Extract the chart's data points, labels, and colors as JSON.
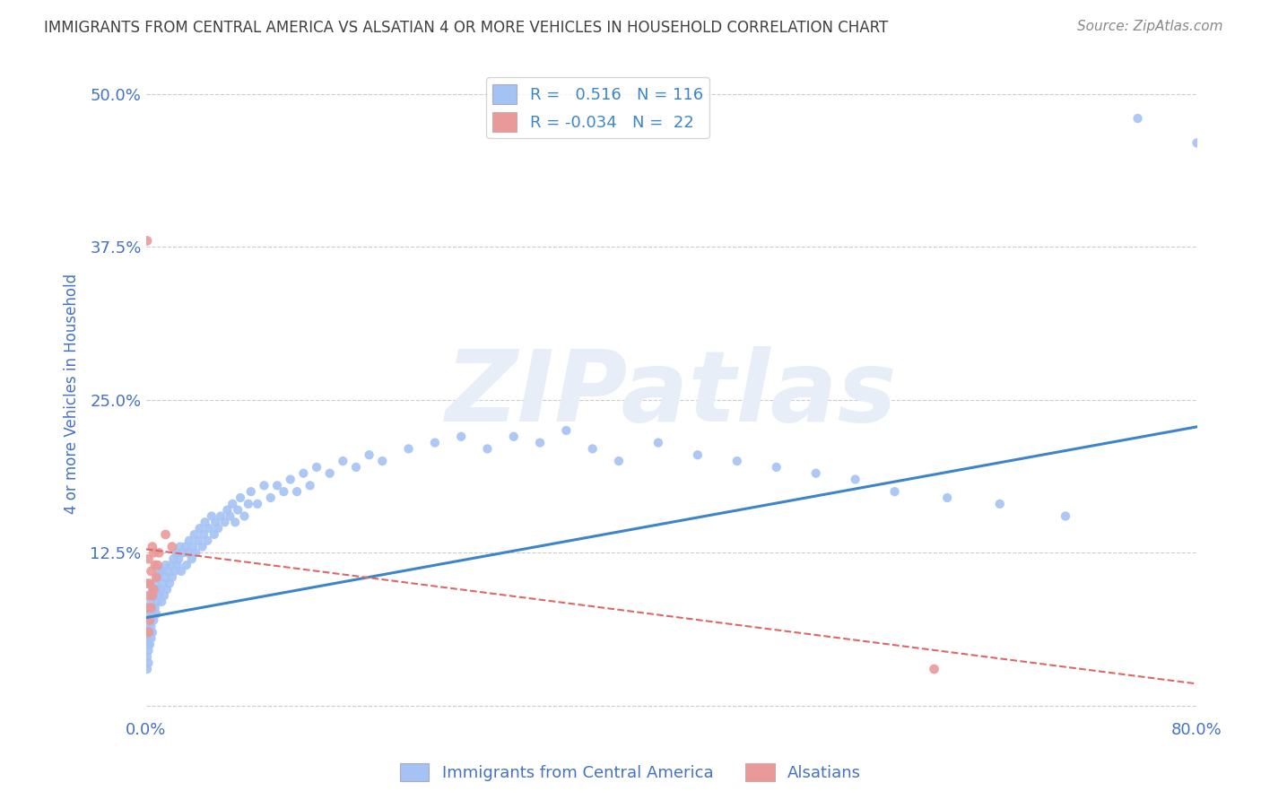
{
  "title": "IMMIGRANTS FROM CENTRAL AMERICA VS ALSATIAN 4 OR MORE VEHICLES IN HOUSEHOLD CORRELATION CHART",
  "source": "Source: ZipAtlas.com",
  "xlabel_blue": "Immigrants from Central America",
  "xlabel_pink": "Alsatians",
  "ylabel": "4 or more Vehicles in Household",
  "blue_R": 0.516,
  "blue_N": 116,
  "pink_R": -0.034,
  "pink_N": 22,
  "xlim": [
    0.0,
    0.8
  ],
  "ylim": [
    -0.01,
    0.52
  ],
  "yticks": [
    0.0,
    0.125,
    0.25,
    0.375,
    0.5
  ],
  "ytick_labels": [
    "",
    "12.5%",
    "25.0%",
    "37.5%",
    "50.0%"
  ],
  "xticks": [
    0.0,
    0.1,
    0.2,
    0.3,
    0.4,
    0.5,
    0.6,
    0.7,
    0.8
  ],
  "xtick_labels": [
    "0.0%",
    "",
    "",
    "",
    "",
    "",
    "",
    "",
    "80.0%"
  ],
  "blue_color": "#a4c2f4",
  "pink_color": "#ea9999",
  "blue_line_color": "#3d85c8",
  "pink_line_color": "#e06666",
  "grid_color": "#cccccc",
  "watermark_color": "#e8eef8",
  "title_color": "#404040",
  "axis_label_color": "#4472c4",
  "tick_color": "#4472c4",
  "blue_line_x0": 0.0,
  "blue_line_y0": 0.072,
  "blue_line_x1": 0.8,
  "blue_line_y1": 0.228,
  "pink_line_x0": 0.0,
  "pink_line_y0": 0.128,
  "pink_line_x1": 0.8,
  "pink_line_y1": 0.018,
  "blue_scatter_x": [
    0.001,
    0.001,
    0.001,
    0.001,
    0.001,
    0.002,
    0.002,
    0.002,
    0.002,
    0.002,
    0.003,
    0.003,
    0.003,
    0.003,
    0.004,
    0.004,
    0.004,
    0.005,
    0.005,
    0.005,
    0.006,
    0.006,
    0.007,
    0.007,
    0.008,
    0.008,
    0.009,
    0.009,
    0.01,
    0.01,
    0.011,
    0.012,
    0.012,
    0.013,
    0.014,
    0.015,
    0.015,
    0.016,
    0.017,
    0.018,
    0.019,
    0.02,
    0.021,
    0.022,
    0.023,
    0.024,
    0.025,
    0.026,
    0.027,
    0.028,
    0.03,
    0.031,
    0.032,
    0.033,
    0.035,
    0.036,
    0.037,
    0.038,
    0.04,
    0.041,
    0.043,
    0.044,
    0.045,
    0.047,
    0.048,
    0.05,
    0.052,
    0.053,
    0.055,
    0.057,
    0.06,
    0.062,
    0.064,
    0.066,
    0.068,
    0.07,
    0.072,
    0.075,
    0.078,
    0.08,
    0.085,
    0.09,
    0.095,
    0.1,
    0.105,
    0.11,
    0.115,
    0.12,
    0.125,
    0.13,
    0.14,
    0.15,
    0.16,
    0.17,
    0.18,
    0.2,
    0.22,
    0.24,
    0.26,
    0.28,
    0.3,
    0.32,
    0.34,
    0.36,
    0.39,
    0.42,
    0.45,
    0.48,
    0.51,
    0.54,
    0.57,
    0.61,
    0.65,
    0.7,
    0.755,
    0.8
  ],
  "blue_scatter_y": [
    0.03,
    0.055,
    0.07,
    0.04,
    0.06,
    0.05,
    0.065,
    0.045,
    0.075,
    0.035,
    0.06,
    0.08,
    0.05,
    0.07,
    0.055,
    0.085,
    0.065,
    0.075,
    0.095,
    0.06,
    0.07,
    0.09,
    0.08,
    0.1,
    0.075,
    0.095,
    0.085,
    0.105,
    0.09,
    0.11,
    0.095,
    0.085,
    0.11,
    0.1,
    0.09,
    0.105,
    0.115,
    0.095,
    0.11,
    0.1,
    0.115,
    0.105,
    0.12,
    0.11,
    0.125,
    0.115,
    0.12,
    0.13,
    0.11,
    0.125,
    0.13,
    0.115,
    0.125,
    0.135,
    0.12,
    0.13,
    0.14,
    0.125,
    0.135,
    0.145,
    0.13,
    0.14,
    0.15,
    0.135,
    0.145,
    0.155,
    0.14,
    0.15,
    0.145,
    0.155,
    0.15,
    0.16,
    0.155,
    0.165,
    0.15,
    0.16,
    0.17,
    0.155,
    0.165,
    0.175,
    0.165,
    0.18,
    0.17,
    0.18,
    0.175,
    0.185,
    0.175,
    0.19,
    0.18,
    0.195,
    0.19,
    0.2,
    0.195,
    0.205,
    0.2,
    0.21,
    0.215,
    0.22,
    0.21,
    0.22,
    0.215,
    0.225,
    0.21,
    0.2,
    0.215,
    0.205,
    0.2,
    0.195,
    0.19,
    0.185,
    0.175,
    0.17,
    0.165,
    0.155,
    0.48,
    0.46
  ],
  "pink_scatter_x": [
    0.001,
    0.001,
    0.001,
    0.002,
    0.002,
    0.002,
    0.003,
    0.003,
    0.004,
    0.004,
    0.005,
    0.005,
    0.006,
    0.006,
    0.007,
    0.008,
    0.009,
    0.01,
    0.015,
    0.02,
    0.6,
    0.001
  ],
  "pink_scatter_y": [
    0.06,
    0.08,
    0.1,
    0.06,
    0.09,
    0.12,
    0.07,
    0.1,
    0.08,
    0.11,
    0.09,
    0.13,
    0.095,
    0.125,
    0.115,
    0.105,
    0.115,
    0.125,
    0.14,
    0.13,
    0.03,
    0.38
  ]
}
